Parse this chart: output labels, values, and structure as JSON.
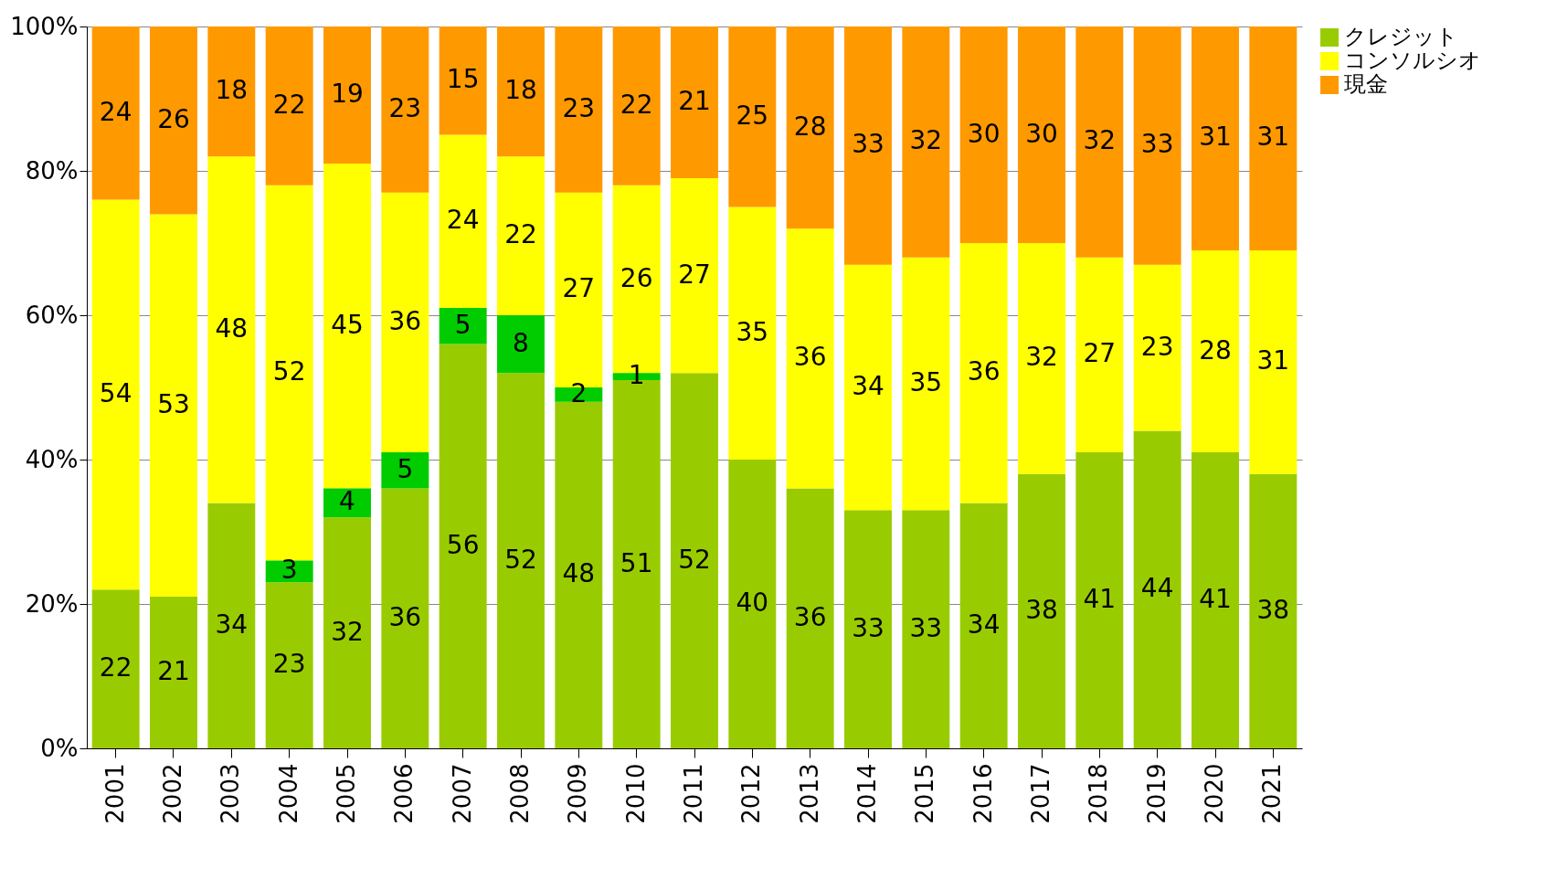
{
  "chart_data": {
    "type": "bar",
    "stacked": true,
    "categories": [
      "2001",
      "2002",
      "2003",
      "2004",
      "2005",
      "2006",
      "2007",
      "2008",
      "2009",
      "2010",
      "2011",
      "2012",
      "2013",
      "2014",
      "2015",
      "2016",
      "2017",
      "2018",
      "2019",
      "2020",
      "2021"
    ],
    "series": [
      {
        "name": "クレジット",
        "color": "#99cc00",
        "values": [
          22,
          21,
          34,
          23,
          32,
          36,
          56,
          52,
          48,
          51,
          52,
          40,
          36,
          33,
          33,
          34,
          38,
          41,
          44,
          41,
          38
        ]
      },
      {
        "color": "#00cc00",
        "values": [
          null,
          null,
          null,
          3,
          4,
          5,
          5,
          8,
          2,
          1,
          null,
          null,
          null,
          null,
          null,
          null,
          null,
          null,
          null,
          null,
          null
        ]
      },
      {
        "name": "コンソルシオ",
        "color": "#ffff00",
        "values": [
          54,
          53,
          48,
          52,
          45,
          36,
          24,
          22,
          27,
          26,
          27,
          35,
          36,
          34,
          35,
          36,
          32,
          27,
          23,
          28,
          31
        ]
      },
      {
        "name": "現金",
        "color": "#ff9900",
        "values": [
          24,
          26,
          18,
          22,
          19,
          23,
          15,
          18,
          23,
          22,
          21,
          25,
          28,
          33,
          32,
          30,
          30,
          32,
          33,
          31,
          31
        ]
      }
    ],
    "ylim": [
      0,
      100
    ],
    "yticks": [
      {
        "value": 0,
        "label": "0%"
      },
      {
        "value": 20,
        "label": "20%"
      },
      {
        "value": 40,
        "label": "40%"
      },
      {
        "value": 60,
        "label": "60%"
      },
      {
        "value": 80,
        "label": "80%"
      },
      {
        "value": 100,
        "label": "100%"
      }
    ],
    "grid": "y",
    "data_labels": true,
    "legend": "right"
  }
}
